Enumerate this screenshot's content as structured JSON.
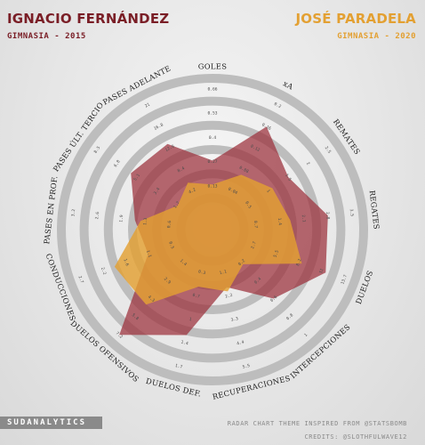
{
  "players": [
    {
      "name": "IGNACIO FERNÁNDEZ",
      "team": "GIMNASIA - 2015",
      "color": "#7a1e26"
    },
    {
      "name": "JOSÉ PARADELA",
      "team": "GIMNASIA - 2020",
      "color": "#e3a032"
    }
  ],
  "brand": "SUDANALYTICS",
  "footer": {
    "theme_credit": "RADAR CHART THEME INSPIRED FROM @STATSBOMB",
    "credits": "CREDITS: @SLOTHFULWAVE12"
  },
  "chart_data": {
    "type": "radar",
    "title": "",
    "axes": [
      {
        "label": "GOLES",
        "ticks": [
          "0",
          "0.13",
          "0.27",
          "0.4",
          "0.53",
          "0.66"
        ],
        "range": [
          0,
          0.66
        ]
      },
      {
        "label": "xA",
        "ticks": [
          "0",
          "0.04",
          "0.08",
          "0.12",
          "0.16",
          "0.2"
        ],
        "range": [
          0,
          0.2
        ]
      },
      {
        "label": "REMATES",
        "ticks": [
          "0",
          "0.5",
          "1",
          "1.5",
          "2",
          "2.5"
        ],
        "range": [
          0,
          2.5
        ]
      },
      {
        "label": "REGATES",
        "ticks": [
          "0",
          "0.7",
          "1.4",
          "2.1",
          "2.8",
          "3.5"
        ],
        "range": [
          0,
          3.5
        ]
      },
      {
        "label": "DUELOS",
        "ticks": [
          "0",
          "2.7",
          "5.5",
          "8.2",
          "11",
          "13.7"
        ],
        "range": [
          0,
          13.7
        ]
      },
      {
        "label": "INTERCEPCIONES",
        "ticks": [
          "0",
          "0.2",
          "0.4",
          "0.6",
          "0.8",
          "1"
        ],
        "range": [
          0,
          1
        ]
      },
      {
        "label": "RECUPERACIONES",
        "ticks": [
          "0",
          "1.1",
          "2.2",
          "3.3",
          "4.4",
          "5.5"
        ],
        "range": [
          0,
          5.5
        ]
      },
      {
        "label": "DUELOS DEF.",
        "ticks": [
          "0",
          "0.3",
          "0.7",
          "1",
          "1.4",
          "1.7"
        ],
        "range": [
          0,
          1.7
        ]
      },
      {
        "label": "DUELOS OFENSIVOS",
        "ticks": [
          "0",
          "1.4",
          "2.9",
          "4.3",
          "5.8",
          "7.2"
        ],
        "range": [
          0,
          7.2
        ]
      },
      {
        "label": "CONDUCCIONES",
        "ticks": [
          "0",
          "0.5",
          "1.1",
          "1.6",
          "2.2",
          "2.7"
        ],
        "range": [
          0,
          2.7
        ]
      },
      {
        "label": "PASES EN PROF.",
        "ticks": [
          "0",
          "0.6",
          "1.3",
          "1.9",
          "2.6",
          "3.2"
        ],
        "range": [
          0,
          3.2
        ]
      },
      {
        "label": "PASES ÚLT. TERCIO",
        "ticks": [
          "0",
          "1.7",
          "3.4",
          "5.1",
          "6.8",
          "8.5"
        ],
        "range": [
          0,
          8.5
        ]
      },
      {
        "label": "PASES ADELANTE",
        "ticks": [
          "0",
          "4.2",
          "8.4",
          "12.6",
          "16.8",
          "21"
        ],
        "range": [
          0,
          21
        ]
      }
    ],
    "series": [
      {
        "name": "IGNACIO FERNÁNDEZ",
        "color": "#9b2f3a",
        "values": [
          0.27,
          0.16,
          1.5,
          2.8,
          11.5,
          0.6,
          1.8,
          1.25,
          7.2,
          1.1,
          1.55,
          5.6,
          13.4
        ]
      },
      {
        "name": "JOSÉ PARADELA",
        "color": "#e3a032",
        "values": [
          0.14,
          0.07,
          1.1,
          1.7,
          8.6,
          0.22,
          2.0,
          0.55,
          4.8,
          1.9,
          1.4,
          1.6,
          5.8
        ]
      }
    ]
  }
}
